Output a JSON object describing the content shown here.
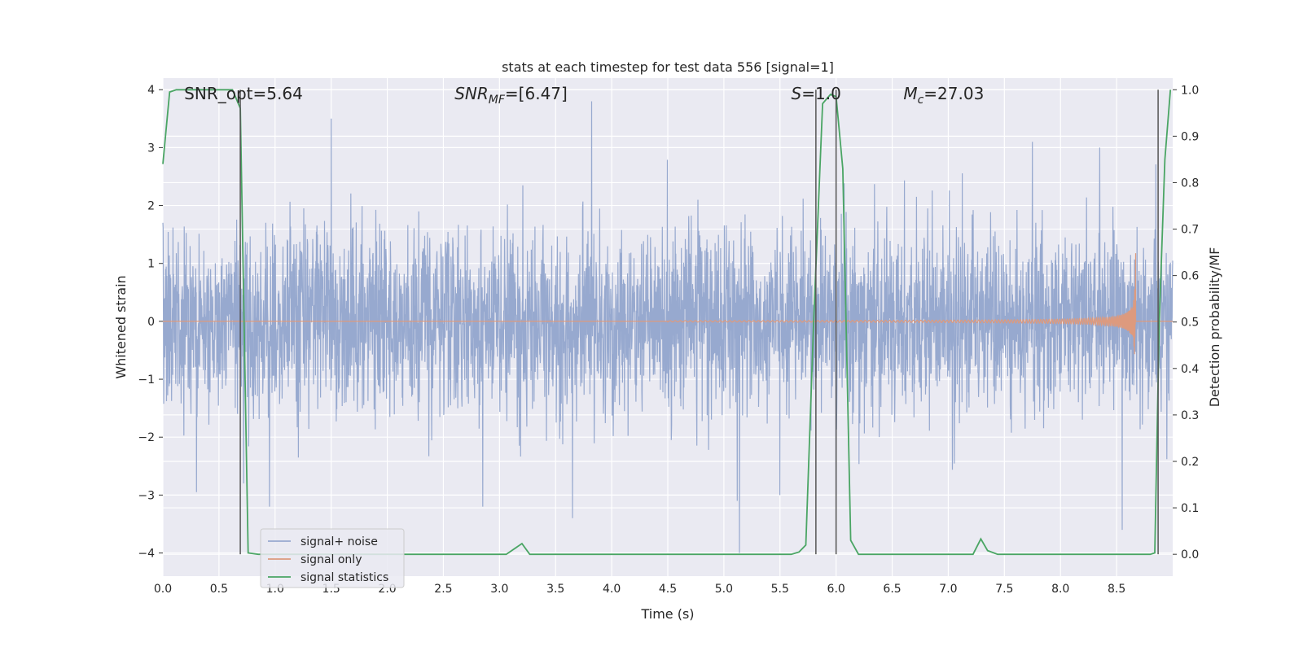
{
  "chart_data": {
    "type": "line",
    "title": "stats at each timestep for test data 556 [signal=1]",
    "xlabel": "Time (s)",
    "ylabel_left": "Whitened strain",
    "ylabel_right": "Detection probability/MF",
    "xlim": [
      0.0,
      9.0
    ],
    "ylim_left": [
      -4.4,
      4.2
    ],
    "ylim_right": [
      -0.047,
      1.025
    ],
    "x_ticks": [
      0.0,
      0.5,
      1.0,
      1.5,
      2.0,
      2.5,
      3.0,
      3.5,
      4.0,
      4.5,
      5.0,
      5.5,
      6.0,
      6.5,
      7.0,
      7.5,
      8.0,
      8.5
    ],
    "x_tick_labels": [
      "0.0",
      "0.5",
      "1.0",
      "1.5",
      "2.0",
      "2.5",
      "3.0",
      "3.5",
      "4.0",
      "4.5",
      "5.0",
      "5.5",
      "6.0",
      "6.5",
      "7.0",
      "7.5",
      "8.0",
      "8.5"
    ],
    "y_left_ticks": [
      -4,
      -3,
      -2,
      -1,
      0,
      1,
      2,
      3,
      4
    ],
    "y_left_tick_labels": [
      "−4",
      "−3",
      "−2",
      "−1",
      "0",
      "1",
      "2",
      "3",
      "4"
    ],
    "y_right_ticks": [
      0.0,
      0.1,
      0.2,
      0.3,
      0.4,
      0.5,
      0.6,
      0.7,
      0.8,
      0.9,
      1.0
    ],
    "y_right_tick_labels": [
      "0.0",
      "0.1",
      "0.2",
      "0.3",
      "0.4",
      "0.5",
      "0.6",
      "0.7",
      "0.8",
      "0.9",
      "1.0"
    ],
    "grid": true,
    "legend_position": "lower-left",
    "annotations": [
      {
        "id": "snr-opt",
        "text": "SNR_opt=5.64",
        "x": 0.19
      },
      {
        "id": "snr-mf",
        "text": "SNR_MF=[6.47]",
        "x": 2.6
      },
      {
        "id": "s-value",
        "text": "S=1.0",
        "x": 5.6
      },
      {
        "id": "mc-value",
        "text": "M_c=27.03",
        "x": 6.6
      }
    ],
    "vertical_markers": [
      0.69,
      5.82,
      6.0,
      8.87
    ],
    "series": [
      {
        "name": "signal+ noise",
        "axis": "left",
        "color": "#97a9cf",
        "kind": "noise",
        "duration": 9.0,
        "samples": 3600,
        "std": 0.78,
        "notable_extremes": [
          {
            "x": 0.72,
            "y": -2.8
          },
          {
            "x": 0.3,
            "y": -2.95
          },
          {
            "x": 0.95,
            "y": -3.2
          },
          {
            "x": 1.5,
            "y": 3.5
          },
          {
            "x": 2.85,
            "y": -3.2
          },
          {
            "x": 3.65,
            "y": -3.4
          },
          {
            "x": 3.82,
            "y": 3.8
          },
          {
            "x": 5.12,
            "y": -3.1
          },
          {
            "x": 5.14,
            "y": -4.0
          },
          {
            "x": 5.5,
            "y": -3.0
          },
          {
            "x": 6.0,
            "y": -3.0
          },
          {
            "x": 7.75,
            "y": 3.1
          },
          {
            "x": 8.55,
            "y": -3.6
          },
          {
            "x": 8.35,
            "y": 3.0
          }
        ]
      },
      {
        "name": "signal only",
        "axis": "left",
        "color": "#dd9a7e",
        "kind": "chirp",
        "start": 4.5,
        "end": 8.67,
        "peak_amplitude": 1.2
      },
      {
        "name": "signal statistics",
        "axis": "right",
        "color": "#4aa564",
        "x": [
          0.0,
          0.06,
          0.12,
          0.62,
          0.69,
          0.76,
          0.85,
          3.06,
          3.2,
          3.27,
          5.6,
          5.67,
          5.73,
          5.8,
          5.88,
          5.95,
          6.0,
          6.06,
          6.13,
          6.2,
          6.6,
          7.22,
          7.29,
          7.35,
          7.44,
          8.8,
          8.84,
          8.88,
          8.93,
          8.98
        ],
        "y": [
          0.84,
          0.995,
          1.0,
          1.0,
          0.96,
          0.003,
          0.0,
          0.0,
          0.023,
          0.0,
          0.0,
          0.005,
          0.02,
          0.5,
          0.97,
          0.99,
          0.985,
          0.83,
          0.03,
          0.0,
          0.0,
          0.0,
          0.033,
          0.008,
          0.0,
          0.0,
          0.003,
          0.5,
          0.85,
          1.0
        ]
      }
    ]
  }
}
